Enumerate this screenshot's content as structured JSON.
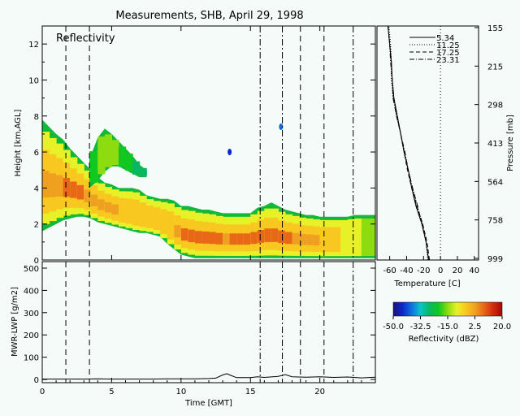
{
  "figure": {
    "title": "Measurements, SHB, April 29, 1998",
    "panel_label": "Reflectivity"
  },
  "colors": {
    "background": "#f4fbf8",
    "lwp_line": "#000000",
    "profile_line": "#000000"
  },
  "chart_data": [
    {
      "type": "heatmap",
      "name": "reflectivity",
      "title": "Reflectivity",
      "xlabel": "Time [GMT]",
      "ylabel": "Height [km,AGL]",
      "xlim": [
        0,
        24
      ],
      "ylim": [
        0,
        13
      ],
      "xticks": [
        0,
        5,
        10,
        15,
        20
      ],
      "yticks": [
        0,
        2,
        4,
        6,
        8,
        10,
        12
      ],
      "sounding_times_dashed": [
        1.7,
        3.4,
        18.6,
        20.3
      ],
      "sounding_times_dashdot": [
        15.7,
        17.3,
        22.4
      ],
      "echo_regions": [
        {
          "t": [
            0,
            0.5,
            1,
            1.5,
            2,
            2.5,
            3,
            3.5,
            4,
            4.5,
            5,
            5.5,
            6,
            6.5,
            7,
            7.5,
            8,
            8.5,
            9,
            9.5,
            10,
            10.5,
            11,
            11.5,
            12,
            12.5,
            13,
            13.5,
            14,
            14.5,
            15,
            15.5,
            16,
            16.5,
            17,
            17.5,
            18,
            18.5,
            19,
            19.5,
            20,
            20.5,
            21,
            21.5,
            22,
            22.5,
            23,
            23.5,
            24
          ],
          "top": [
            7.8,
            7.4,
            7.0,
            6.7,
            6.2,
            5.8,
            5.4,
            5.0,
            4.6,
            4.3,
            4.2,
            4.0,
            4.0,
            4.0,
            3.9,
            3.6,
            3.5,
            3.4,
            3.4,
            3.3,
            3.0,
            3.0,
            2.9,
            2.8,
            2.8,
            2.7,
            2.6,
            2.6,
            2.6,
            2.6,
            2.6,
            2.9,
            3.0,
            3.2,
            3.0,
            2.8,
            2.7,
            2.6,
            2.5,
            2.5,
            2.4,
            2.4,
            2.4,
            2.4,
            2.4,
            2.5,
            2.5,
            2.5,
            2.5
          ],
          "base": [
            1.6,
            1.8,
            2.0,
            2.2,
            2.3,
            2.4,
            2.4,
            2.3,
            2.1,
            2.0,
            1.9,
            1.8,
            1.7,
            1.6,
            1.5,
            1.5,
            1.4,
            1.3,
            0.9,
            0.6,
            0.3,
            0.2,
            0.1,
            0.1,
            0.1,
            0.1,
            0.1,
            0.1,
            0.1,
            0.1,
            0.1,
            0.1,
            0.1,
            0.1,
            0.1,
            0.1,
            0.1,
            0.1,
            0.1,
            0.1,
            0.1,
            0.1,
            0.1,
            0.1,
            0.1,
            0.1,
            0.1,
            0.1,
            0.1
          ],
          "peak_dbz": [
            2,
            3,
            4,
            5,
            6,
            6,
            5,
            4,
            3,
            2,
            1,
            0,
            -1,
            -2,
            -3,
            -4,
            -5,
            -6,
            -5,
            0,
            5,
            7,
            8,
            8,
            7,
            6,
            5,
            5,
            6,
            7,
            8,
            9,
            9,
            8,
            7,
            6,
            5,
            4,
            3,
            2,
            0,
            -2,
            -4,
            -6,
            -8,
            -10,
            -12,
            -14,
            -15
          ]
        },
        {
          "t": [
            3.4,
            4,
            4.5,
            5,
            5.5,
            6,
            6.5,
            7,
            7.5
          ],
          "top": [
            5.6,
            6.8,
            7.3,
            7.0,
            6.6,
            6.2,
            5.8,
            5.3,
            5.0
          ],
          "base": [
            4.0,
            4.4,
            4.9,
            5.2,
            5.2,
            5.0,
            4.8,
            4.6,
            4.6
          ],
          "peak_dbz": [
            -20,
            -18,
            -15,
            -15,
            -18,
            -22,
            -25,
            -28,
            -30
          ]
        }
      ],
      "isolated_echoes": [
        {
          "t": 17.2,
          "h": 7.4,
          "dbz": -40
        },
        {
          "t": 13.5,
          "h": 6.0,
          "dbz": -45
        }
      ]
    },
    {
      "type": "line",
      "name": "temperature-profile",
      "xlabel": "Temperature [C]",
      "ylabel": "Pressure [mb]",
      "xlim": [
        -75,
        45
      ],
      "xticks": [
        -60,
        -40,
        -20,
        0,
        20,
        40
      ],
      "ytick_labels": [
        "155",
        "215",
        "298",
        "413",
        "564",
        "758",
        "999"
      ],
      "zero_line": 0,
      "legend_position": "top-left",
      "legend_labels": [
        "5.34",
        "11.25",
        "17.25",
        "23.31"
      ],
      "series": [
        {
          "label": "5.34",
          "style": "solid",
          "height_km": [
            0,
            1,
            2,
            3,
            4,
            5,
            6,
            7,
            8,
            9,
            10,
            11,
            12,
            13
          ],
          "temp_c": [
            -14,
            -17,
            -22,
            -29,
            -34,
            -38,
            -43,
            -47,
            -51,
            -55,
            -57,
            -58,
            -60,
            -62
          ]
        },
        {
          "label": "11.25",
          "style": "dotted",
          "height_km": [
            0,
            1,
            2,
            3,
            4,
            5,
            6,
            7,
            8,
            9,
            10,
            11,
            12,
            13
          ],
          "temp_c": [
            -15,
            -17,
            -21,
            -28,
            -33,
            -38,
            -43,
            -47,
            -52,
            -56,
            -58,
            -58,
            -59,
            -61
          ]
        },
        {
          "label": "17.25",
          "style": "dashed",
          "height_km": [
            0,
            1,
            2,
            3,
            4,
            5,
            6,
            7,
            8,
            9,
            10,
            11,
            12,
            13
          ],
          "temp_c": [
            -13,
            -16,
            -21,
            -28,
            -34,
            -39,
            -43,
            -47,
            -51,
            -55,
            -57,
            -58,
            -60,
            -62
          ]
        },
        {
          "label": "23.31",
          "style": "dashdot",
          "height_km": [
            0,
            1,
            2,
            3,
            4,
            5,
            6,
            7,
            8,
            9,
            10,
            11,
            12,
            13
          ],
          "temp_c": [
            -14,
            -17,
            -22,
            -27,
            -33,
            -38,
            -42,
            -47,
            -52,
            -56,
            -57,
            -59,
            -60,
            -62
          ]
        }
      ]
    },
    {
      "type": "line",
      "name": "liquid-water-path",
      "xlabel": "Time [GMT]",
      "ylabel": "MWR-LWP [g/m2]",
      "xlim": [
        0,
        24
      ],
      "ylim": [
        0,
        500
      ],
      "xticks": [
        0,
        5,
        10,
        15,
        20
      ],
      "yticks": [
        0,
        100,
        200,
        300,
        400,
        500
      ],
      "series": [
        {
          "x": [
            0,
            1,
            2,
            3,
            4,
            5,
            6,
            7,
            8,
            9,
            10,
            11,
            12,
            12.5,
            13,
            13.3,
            13.6,
            14,
            15,
            15.5,
            16,
            17,
            17.5,
            18,
            19,
            20,
            21,
            22,
            23,
            24
          ],
          "y": [
            2,
            2,
            2,
            2,
            3,
            2,
            2,
            2,
            2,
            3,
            3,
            3,
            4,
            6,
            20,
            26,
            18,
            8,
            8,
            12,
            9,
            14,
            22,
            12,
            10,
            12,
            9,
            11,
            7,
            10
          ]
        }
      ]
    },
    {
      "type": "colorbar",
      "name": "reflectivity-scale",
      "label": "Reflectivity (dBZ)",
      "range": [
        -50,
        20
      ],
      "tick_labels": [
        "-50.0",
        "-32.5",
        "-15.0",
        "2.5",
        "20.0"
      ],
      "colors": [
        "#1a1278",
        "#0b28c8",
        "#0f6fe0",
        "#0ac5c8",
        "#08b860",
        "#10c820",
        "#8cdc10",
        "#e8f028",
        "#f8c820",
        "#f0a020",
        "#e86818",
        "#d02c10",
        "#a80808"
      ]
    }
  ]
}
